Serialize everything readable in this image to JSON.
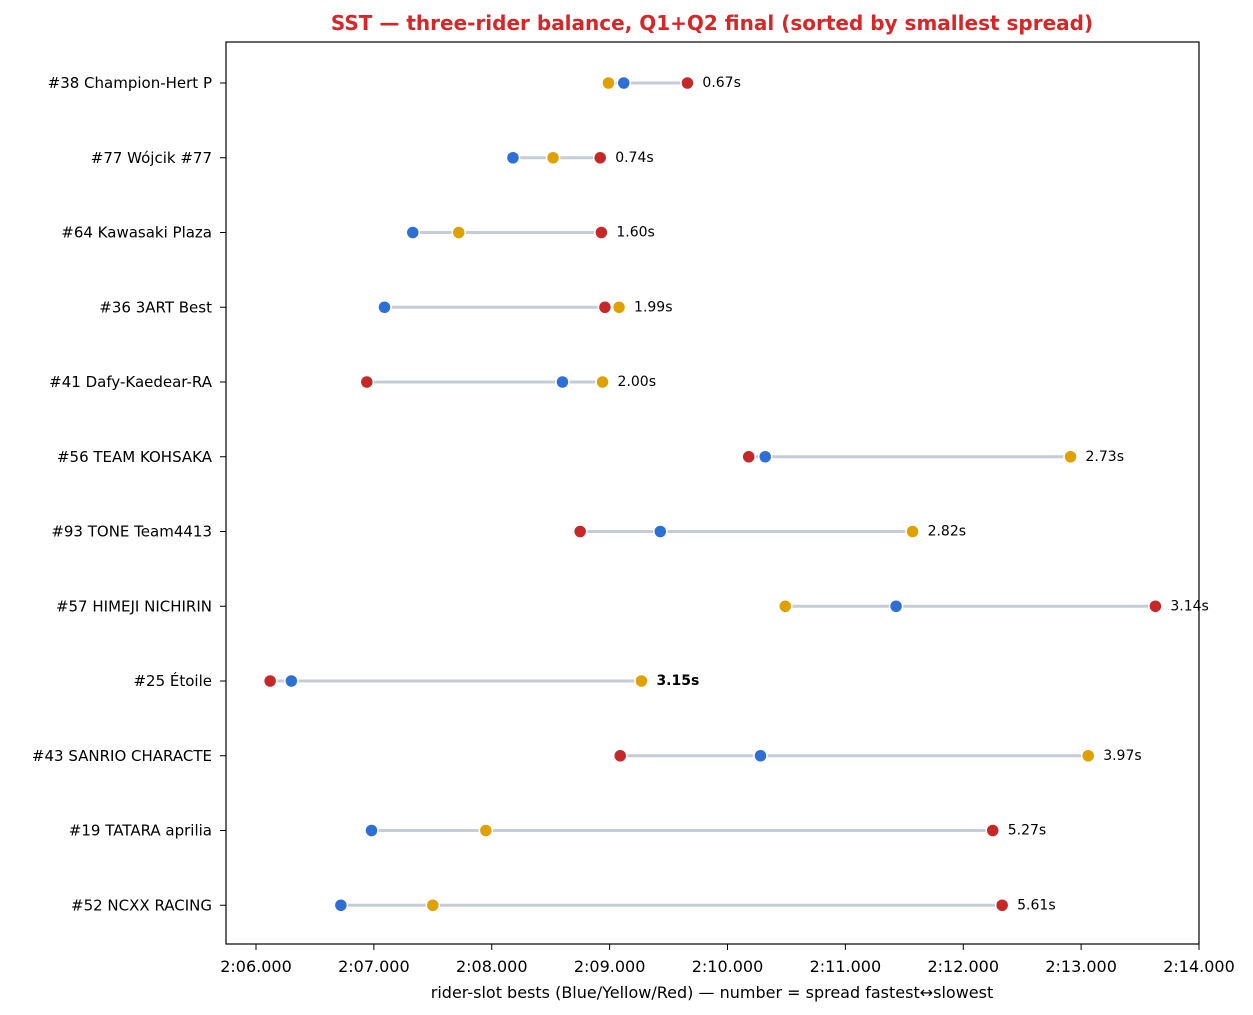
{
  "chart_data": {
    "type": "dumbbell",
    "title": "SST — three-rider balance, Q1+Q2 final (sorted by smallest spread)",
    "xlabel": "rider-slot bests (Blue/Yellow/Red) — number = spread fastest↔slowest",
    "xlim": [
      126.0,
      134.0
    ],
    "x_ticks": [
      {
        "value": 126,
        "label": "2:06.000"
      },
      {
        "value": 127,
        "label": "2:07.000"
      },
      {
        "value": 128,
        "label": "2:08.000"
      },
      {
        "value": 129,
        "label": "2:09.000"
      },
      {
        "value": 130,
        "label": "2:10.000"
      },
      {
        "value": 131,
        "label": "2:11.000"
      },
      {
        "value": 132,
        "label": "2:12.000"
      },
      {
        "value": 133,
        "label": "2:13.000"
      },
      {
        "value": 134,
        "label": "2:14.000"
      }
    ],
    "colors": {
      "blue": "#2e6fd6",
      "yellow": "#e0a100",
      "red": "#c62828",
      "line": "#c5ccd6",
      "title": "#d62728"
    },
    "teams": [
      {
        "label": "#38 Champion-Hert P",
        "blue": 129.12,
        "yellow": 128.99,
        "red": 129.66,
        "spread": "0.67s",
        "highlight": false
      },
      {
        "label": "#77 Wójcik #77",
        "blue": 128.18,
        "yellow": 128.52,
        "red": 128.92,
        "spread": "0.74s",
        "highlight": false
      },
      {
        "label": "#64 Kawasaki Plaza",
        "blue": 127.33,
        "yellow": 127.72,
        "red": 128.93,
        "spread": "1.60s",
        "highlight": false
      },
      {
        "label": "#36 3ART Best",
        "blue": 127.09,
        "yellow": 129.08,
        "red": 128.96,
        "spread": "1.99s",
        "highlight": false
      },
      {
        "label": "#41 Dafy-Kaedear-RA",
        "blue": 128.6,
        "yellow": 128.94,
        "red": 126.94,
        "spread": "2.00s",
        "highlight": false
      },
      {
        "label": "#56 TEAM KOHSAKA",
        "blue": 130.32,
        "yellow": 132.91,
        "red": 130.18,
        "spread": "2.73s",
        "highlight": false
      },
      {
        "label": "#93 TONE Team4413",
        "blue": 129.43,
        "yellow": 131.57,
        "red": 128.75,
        "spread": "2.82s",
        "highlight": false
      },
      {
        "label": "#57 HIMEJI NICHIRIN",
        "blue": 131.43,
        "yellow": 130.49,
        "red": 133.63,
        "spread": "3.14s",
        "highlight": false
      },
      {
        "label": "#25 Étoile",
        "blue": 126.3,
        "yellow": 129.27,
        "red": 126.12,
        "spread": "3.15s",
        "highlight": true
      },
      {
        "label": "#43 SANRIO CHARACTE",
        "blue": 130.28,
        "yellow": 133.06,
        "red": 129.09,
        "spread": "3.97s",
        "highlight": false
      },
      {
        "label": "#19 TATARA aprilia",
        "blue": 126.98,
        "yellow": 127.95,
        "red": 132.25,
        "spread": "5.27s",
        "highlight": false
      },
      {
        "label": "#52 NCXX RACING",
        "blue": 126.72,
        "yellow": 127.5,
        "red": 132.33,
        "spread": "5.61s",
        "highlight": false
      }
    ]
  }
}
